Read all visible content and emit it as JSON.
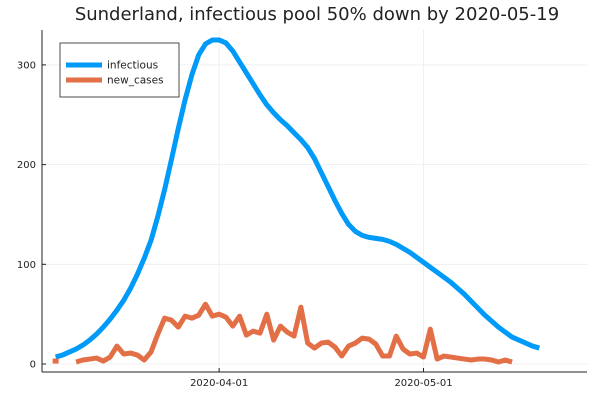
{
  "chart_data": {
    "type": "line",
    "title": "Sunderland, infectious pool 50% down by 2020-05-19",
    "xlabel": "",
    "ylabel": "",
    "x_start": "2020-03-08",
    "x_end": "2020-05-23",
    "xlim": [
      "2020-03-06",
      "2020-05-25"
    ],
    "ylim": [
      -8,
      335
    ],
    "y_ticks": [
      0,
      100,
      200,
      300
    ],
    "y_tick_labels": [
      "0",
      "100",
      "200",
      "300"
    ],
    "x_ticks": [
      "2020-04-01",
      "2020-05-01"
    ],
    "x_tick_labels": [
      "2020-04-01",
      "2020-05-01"
    ],
    "grid": true,
    "legend_position": "top-left",
    "series": [
      {
        "name": "infectious",
        "color": "#009af9",
        "values": [
          7,
          9,
          12,
          15,
          19,
          24,
          30,
          37,
          45,
          54,
          64,
          76,
          90,
          106,
          124,
          148,
          175,
          205,
          236,
          265,
          290,
          310,
          321,
          325,
          325,
          322,
          314,
          303,
          292,
          281,
          270,
          260,
          252,
          245,
          239,
          232,
          225,
          217,
          206,
          192,
          178,
          164,
          151,
          140,
          133,
          129,
          127,
          126,
          125,
          123,
          120,
          116,
          112,
          107,
          102,
          97,
          92,
          87,
          82,
          76,
          70,
          63,
          56,
          49,
          43,
          37,
          32,
          27,
          24,
          21,
          18,
          16
        ]
      },
      {
        "name": "new_cases",
        "color": "#e26f46",
        "values": [
          3,
          null,
          null,
          2,
          4,
          5,
          6,
          3,
          7,
          18,
          10,
          11,
          9,
          4,
          12,
          30,
          46,
          44,
          37,
          48,
          46,
          49,
          60,
          48,
          50,
          47,
          38,
          48,
          29,
          33,
          31,
          50,
          24,
          38,
          32,
          28,
          57,
          21,
          16,
          21,
          22,
          17,
          8,
          18,
          21,
          26,
          25,
          20,
          8,
          8,
          28,
          15,
          10,
          11,
          7,
          35,
          5,
          8,
          7,
          6,
          5,
          4,
          5,
          5,
          4,
          2,
          4,
          2
        ]
      }
    ]
  }
}
